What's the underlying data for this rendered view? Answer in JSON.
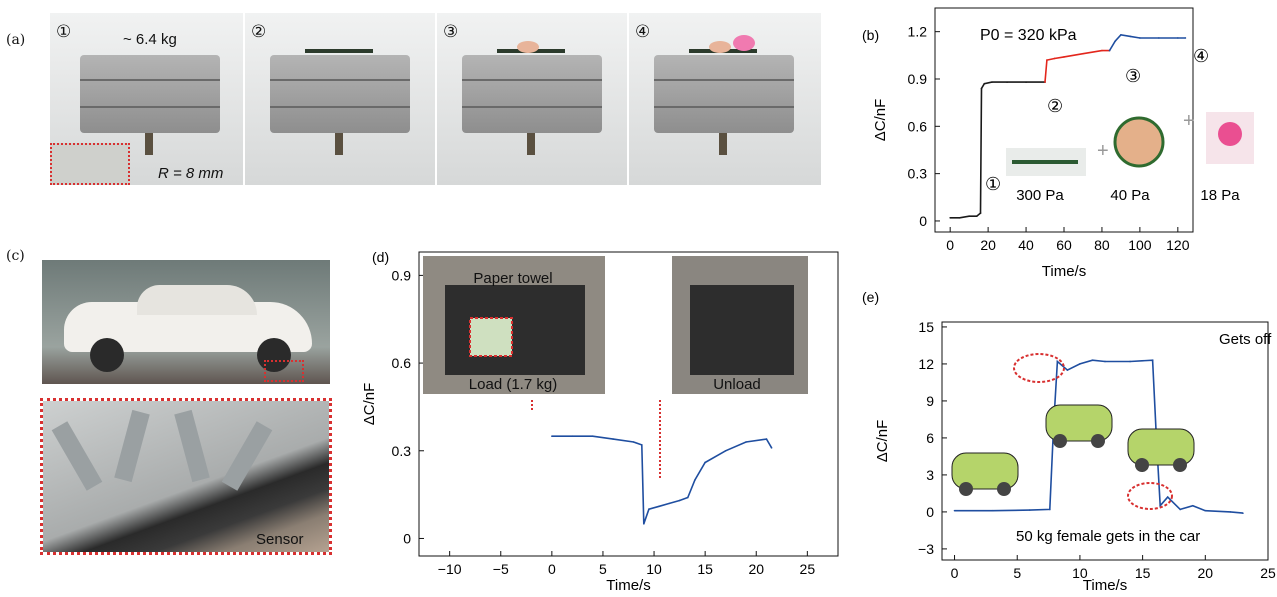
{
  "panels": {
    "a": {
      "letter": "(a)",
      "steps": [
        "①",
        "②",
        "③",
        "④"
      ],
      "mass_label": "~ 6.4 kg",
      "radius_label": "R = 8 mm"
    },
    "c": {
      "letter": "(c)",
      "sensor_label": "Sensor"
    }
  },
  "chart_data": [
    {
      "id": "b",
      "letter": "(b)",
      "type": "line",
      "xlabel": "Time/s",
      "ylabel": "ΔC/nF",
      "xlim": [
        -8,
        128
      ],
      "ylim": [
        -0.07,
        1.35
      ],
      "xticks": [
        0,
        20,
        40,
        60,
        80,
        100,
        120
      ],
      "yticks": [
        0,
        0.3,
        0.6,
        0.9,
        1.2
      ],
      "ytick_labels": [
        "0",
        "0.3",
        "0.6",
        "0.9",
        "1.2"
      ],
      "annotation": "P0 = 320 kPa",
      "step_markers": [
        "①",
        "②",
        "③",
        "④"
      ],
      "item_labels": [
        "300 Pa",
        "40 Pa",
        "18 Pa"
      ],
      "plus_sign": "+",
      "series": [
        {
          "color": "#1a1a1a",
          "x": [
            0,
            5,
            10,
            14,
            16,
            16.5,
            18,
            22,
            30,
            40,
            50
          ],
          "y": [
            0.02,
            0.02,
            0.03,
            0.03,
            0.05,
            0.84,
            0.87,
            0.88,
            0.88,
            0.88,
            0.88
          ]
        },
        {
          "color": "#e3261c",
          "x": [
            50,
            51,
            55,
            60,
            70,
            80,
            84
          ],
          "y": [
            0.88,
            1.02,
            1.03,
            1.04,
            1.06,
            1.08,
            1.08
          ]
        },
        {
          "color": "#1f4ea0",
          "x": [
            84,
            87,
            90,
            95,
            100,
            110,
            120,
            124
          ],
          "y": [
            1.08,
            1.14,
            1.18,
            1.17,
            1.16,
            1.16,
            1.16,
            1.16
          ]
        }
      ]
    },
    {
      "id": "d",
      "letter": "(d)",
      "type": "line",
      "xlabel": "Time/s",
      "ylabel": "ΔC/nF",
      "xlim": [
        -13,
        28
      ],
      "ylim": [
        -0.06,
        0.98
      ],
      "xticks": [
        -10,
        -5,
        0,
        5,
        10,
        15,
        20,
        25
      ],
      "yticks": [
        0,
        0.3,
        0.6,
        0.9
      ],
      "ytick_labels": [
        "0",
        "0.3",
        "0.6",
        "0.9"
      ],
      "inset_labels": [
        "Paper towel",
        "Load (1.7 kg)",
        "Unload"
      ],
      "series": [
        {
          "color": "#1f4ea0",
          "x": [
            0,
            2,
            4,
            6,
            8,
            8.8,
            9.0,
            9.5,
            10.5,
            11.5,
            12.5,
            13.3,
            14,
            15,
            17,
            19,
            21,
            21.5
          ],
          "y": [
            0.35,
            0.35,
            0.35,
            0.34,
            0.33,
            0.32,
            0.05,
            0.1,
            0.11,
            0.12,
            0.13,
            0.14,
            0.2,
            0.26,
            0.3,
            0.33,
            0.34,
            0.31
          ]
        }
      ]
    },
    {
      "id": "e",
      "letter": "(e)",
      "type": "line",
      "xlabel": "Time/s",
      "ylabel": "ΔC/nF",
      "xlim": [
        -1,
        25
      ],
      "ylim": [
        -3.9,
        15.4
      ],
      "xticks": [
        0,
        5,
        10,
        15,
        20,
        25
      ],
      "yticks": [
        -3,
        0,
        3,
        6,
        9,
        12,
        15
      ],
      "ytick_labels": [
        "−3",
        "0",
        "3",
        "6",
        "9",
        "12",
        "15"
      ],
      "annotations": [
        "Gets off",
        "50 kg female gets in the car"
      ],
      "series": [
        {
          "color": "#1f4ea0",
          "x": [
            0,
            3,
            6,
            7.6,
            7.9,
            8.2,
            9,
            10,
            11,
            12,
            14,
            15.8,
            16.1,
            16.4,
            17,
            18,
            19,
            20,
            22,
            23
          ],
          "y": [
            0.1,
            0.1,
            0.15,
            0.2,
            7,
            12.2,
            11.5,
            12,
            12.3,
            12.2,
            12.2,
            12.3,
            6,
            0.5,
            1.2,
            0.2,
            0.5,
            0.1,
            0.0,
            -0.1
          ]
        }
      ]
    }
  ]
}
